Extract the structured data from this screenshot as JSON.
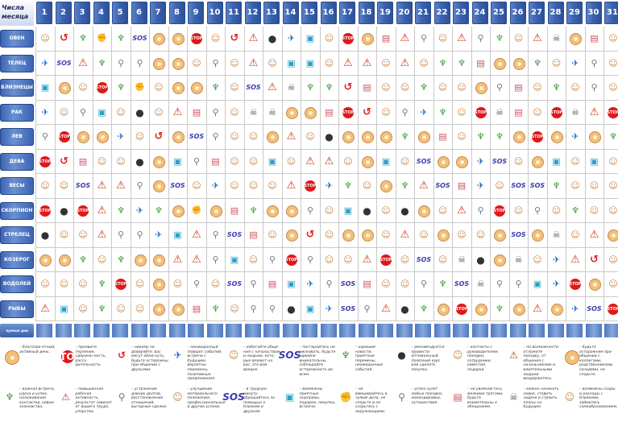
{
  "header": {
    "corner_label": "Числа\nмесяца",
    "days": [
      "1",
      "2",
      "3",
      "4",
      "5",
      "6",
      "7",
      "8",
      "9",
      "10",
      "11",
      "12",
      "13",
      "14",
      "15",
      "16",
      "17",
      "18",
      "19",
      "20",
      "21",
      "22",
      "23",
      "24",
      "25",
      "26",
      "27",
      "28",
      "29",
      "30",
      "31"
    ]
  },
  "signs": [
    "ОВЕН",
    "ТЕЛЕЦ",
    "БЛИЗНЕЦЫ",
    "РАК",
    "ЛЕВ",
    "ДЕВА",
    "ВЕСЫ",
    "СКОРПИОН",
    "СТРЕЛЕЦ",
    "КОЗЕРОГ",
    "ВОДОЛЕЙ",
    "РЫБЫ"
  ],
  "footer_row_label": "лунные дни",
  "icon_types": {
    "sun": "",
    "stop": "STOP",
    "sos": "SOS",
    "warn": "⚠",
    "redo": "↺",
    "bomb": "●",
    "gift": "▣",
    "fist": "✊",
    "glass": "♆",
    "skull": "☠",
    "bike": "⚲",
    "man": "☺",
    "walk": "✈",
    "cake": "▤"
  },
  "grid": [
    [
      "man",
      "redo",
      "glass",
      "fist",
      "glass",
      "sos",
      "sun",
      "sun",
      "stop",
      "man",
      "redo",
      "warn",
      "bomb",
      "walk",
      "gift",
      "man",
      "stop",
      "sun",
      "cake",
      "warn",
      "bike",
      "man",
      "warn",
      "bike",
      "glass",
      "man",
      "warn",
      "skull",
      "sun",
      "cake",
      "man"
    ],
    [
      "walk",
      "sos",
      "warn",
      "glass",
      "bike",
      "bike",
      "sun",
      "sun",
      "man",
      "bike",
      "man",
      "warn",
      "man",
      "gift",
      "gift",
      "man",
      "warn",
      "warn",
      "man",
      "warn",
      "man",
      "glass",
      "glass",
      "cake",
      "sun",
      "sun",
      "glass",
      "man",
      "walk",
      "bike",
      "man"
    ],
    [
      "gift",
      "sun",
      "man",
      "stop",
      "glass",
      "fist",
      "man",
      "sun",
      "sun",
      "glass",
      "man",
      "sos",
      "warn",
      "skull",
      "glass",
      "glass",
      "redo",
      "cake",
      "man",
      "man",
      "glass",
      "man",
      "man",
      "sun",
      "bike",
      "cake",
      "man",
      "glass",
      "man",
      "bike",
      "man"
    ],
    [
      "walk",
      "man",
      "bike",
      "gift",
      "man",
      "bomb",
      "man",
      "warn",
      "cake",
      "bike",
      "man",
      "skull",
      "skull",
      "sun",
      "sun",
      "cake",
      "stop",
      "redo",
      "man",
      "bike",
      "walk",
      "glass",
      "man",
      "stop",
      "skull",
      "cake",
      "man",
      "stop",
      "skull",
      "warn",
      "stop"
    ],
    [
      "bike",
      "stop",
      "sun",
      "sun",
      "walk",
      "man",
      "redo",
      "sun",
      "sos",
      "bike",
      "man",
      "man",
      "sun",
      "warn",
      "man",
      "bomb",
      "sun",
      "sun",
      "sun",
      "glass",
      "sun",
      "cake",
      "man",
      "glass",
      "glass",
      "sun",
      "stop",
      "sun",
      "walk",
      "sun",
      "glass"
    ],
    [
      "stop",
      "redo",
      "cake",
      "man",
      "man",
      "bomb",
      "sun",
      "gift",
      "bike",
      "cake",
      "man",
      "man",
      "gift",
      "man",
      "warn",
      "warn",
      "man",
      "sun",
      "gift",
      "man",
      "sos",
      "sun",
      "sun",
      "walk",
      "sos",
      "man",
      "sun",
      "gift",
      "man",
      "gift",
      "man"
    ],
    [
      "man",
      "man",
      "sos",
      "warn",
      "warn",
      "bike",
      "sun",
      "sos",
      "man",
      "walk",
      "man",
      "man",
      "man",
      "warn",
      "stop",
      "walk",
      "glass",
      "man",
      "sun",
      "glass",
      "warn",
      "sos",
      "cake",
      "walk",
      "man",
      "sos",
      "sos",
      "glass",
      "man",
      "man",
      "man"
    ],
    [
      "stop",
      "bomb",
      "stop",
      "warn",
      "glass",
      "walk",
      "glass",
      "sun",
      "fist",
      "sun",
      "cake",
      "glass",
      "sun",
      "sun",
      "bike",
      "man",
      "gift",
      "bomb",
      "man",
      "bomb",
      "sun",
      "man",
      "warn",
      "bike",
      "stop",
      "man",
      "bike",
      "man",
      "glass",
      "man",
      "man"
    ],
    [
      "bomb",
      "man",
      "man",
      "warn",
      "bike",
      "bike",
      "walk",
      "gift",
      "warn",
      "bike",
      "sos",
      "cake",
      "man",
      "sun",
      "redo",
      "man",
      "sun",
      "sun",
      "man",
      "warn",
      "man",
      "sun",
      "man",
      "man",
      "sun",
      "sos",
      "sun",
      "skull",
      "man",
      "warn",
      "sun"
    ],
    [
      "sun",
      "sun",
      "glass",
      "man",
      "glass",
      "sun",
      "sun",
      "warn",
      "warn",
      "bike",
      "gift",
      "man",
      "bike",
      "stop",
      "bike",
      "man",
      "man",
      "warn",
      "stop",
      "man",
      "sos",
      "man",
      "skull",
      "bomb",
      "sun",
      "skull",
      "man",
      "walk",
      "warn",
      "redo",
      "man"
    ],
    [
      "man",
      "man",
      "man",
      "glass",
      "stop",
      "man",
      "sun",
      "man",
      "bike",
      "man",
      "sos",
      "bike",
      "cake",
      "gift",
      "walk",
      "bike",
      "sos",
      "cake",
      "man",
      "man",
      "bike",
      "glass",
      "sos",
      "skull",
      "bike",
      "bike",
      "gift",
      "walk",
      "stop",
      "sun",
      "man"
    ],
    [
      "warn",
      "gift",
      "man",
      "glass",
      "man",
      "man",
      "sun",
      "sun",
      "cake",
      "glass",
      "man",
      "bike",
      "bike",
      "bomb",
      "gift",
      "walk",
      "sos",
      "bike",
      "warn",
      "bomb",
      "glass",
      "sun",
      "stop",
      "sun",
      "glass",
      "sun",
      "warn",
      "sun",
      "walk",
      "sos",
      "stop"
    ]
  ],
  "legend": [
    {
      "icon": "sun",
      "text": "– благопри-ятный, активный день."
    },
    {
      "icon": "stop",
      "text": "– проявите терпение, сдержан-ность, рассу-дительность."
    },
    {
      "icon": "redo",
      "text": "– никому не доверяйте, вас могут обма-нуть, будьте осторожны при общении с друзьями."
    },
    {
      "icon": "walk",
      "text": "– неожиданный поворот событий, встречи с будущим, вероятны перемены, позитивные предложения."
    },
    {
      "icon": "man",
      "text": "– избегайте обще-ния с начальством и людьми, кото-рые влияют на вас, это вам вредно."
    },
    {
      "icon": "sos",
      "text": "– постарайтесь не рисковать, будьте вдвойне внимательны, соблюдайте осторожность во всем."
    },
    {
      "icon": "glass",
      "text": "– хорошие новости, приятные перемены, неожиданные события."
    },
    {
      "icon": "bomb",
      "text": "– рекомендуется провести оптимальный, полезный курс или сделать покупку."
    },
    {
      "icon": "man",
      "text": "– контакты с руководителем, поездки, сотрудники, известия, подарки."
    },
    {
      "icon": "warn",
      "text": "– по возможности отложите поездку, от общения с начальниками и влиятельными людьми воздержитесь."
    },
    {
      "icon": "sun",
      "text": "– будьте осторожнее при общении с коллегами, родственниками, соседями, не спорьте."
    },
    {
      "icon": "glass",
      "text": "– важная встреча, удача и успех, налаживание контактов, новые знакомства."
    },
    {
      "icon": "warn",
      "text": "– повышенная рабочая активность, результат зависит от вашего труда, упорства."
    },
    {
      "icon": "bike",
      "text": "– устранение давних долгов, восстановление отношений, выгодные сделки."
    },
    {
      "icon": "man",
      "text": "– улучшение материального положения, профессиональные и другие успехи."
    },
    {
      "icon": "sos",
      "text": "– в трудную минуту обращайтесь за помощью к близким и друзьям."
    },
    {
      "icon": "gift",
      "text": "– возможны приятные сюрпризы, подарки, покупки, встречи."
    },
    {
      "icon": "fist",
      "text": "– не вмешивайтесь в чужие дела, не спорьте и не ссорьтесь с окружающими."
    },
    {
      "icon": "bike",
      "text": "– успех сулят любые поездки, командировки, путешествия."
    },
    {
      "icon": "cake",
      "text": "– не увлекай-тесь мелкими тратами, будьте внимательны к обещаниям."
    },
    {
      "icon": "skull",
      "text": "– можно начинать новое, ставить задачи и строить планы на будущее."
    },
    {
      "icon": "man",
      "text": "– возможны ссоры и разлады с близкими, займитесь самообразованием."
    }
  ]
}
